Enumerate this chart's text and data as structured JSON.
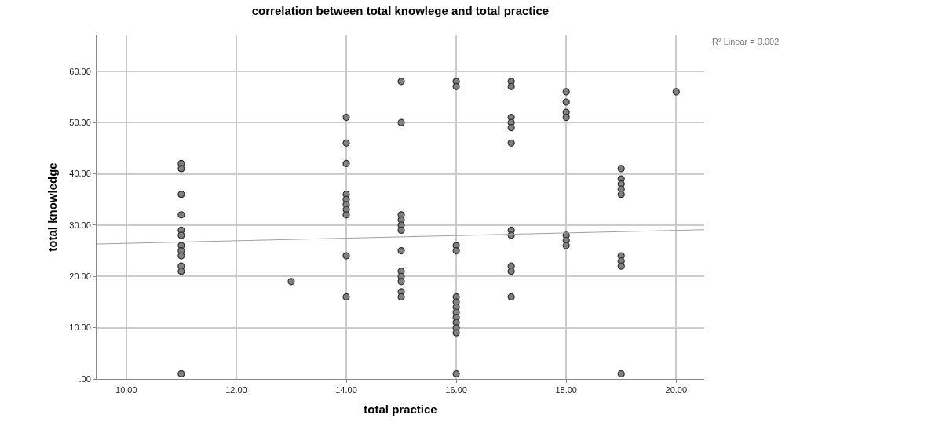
{
  "chart_data": {
    "type": "scatter",
    "title": "correlation between total knowlege and total practice",
    "xlabel": "total practice",
    "ylabel": "total knowledge",
    "annotations": [
      "R² Linear = 0.002"
    ],
    "xlim": [
      9.46,
      20.51
    ],
    "ylim": [
      0,
      67
    ],
    "xticks": [
      {
        "value": 10,
        "label": "10.00"
      },
      {
        "value": 12,
        "label": "12.00"
      },
      {
        "value": 14,
        "label": "14.00"
      },
      {
        "value": 16,
        "label": "16.00"
      },
      {
        "value": 18,
        "label": "18.00"
      },
      {
        "value": 20,
        "label": "20.00"
      }
    ],
    "yticks": [
      {
        "value": 0,
        "label": ".00"
      },
      {
        "value": 10,
        "label": "10.00"
      },
      {
        "value": 20,
        "label": "20.00"
      },
      {
        "value": 30,
        "label": "30.00"
      },
      {
        "value": 40,
        "label": "40.00"
      },
      {
        "value": 50,
        "label": "50.00"
      },
      {
        "value": 60,
        "label": "60.00"
      }
    ],
    "grid": true,
    "marker": "circle",
    "series": [
      {
        "color": "#808080",
        "x": [
          11,
          11,
          11,
          11,
          11,
          11,
          11,
          11,
          11,
          11,
          11,
          11,
          13,
          14,
          14,
          14,
          14,
          14,
          14,
          14,
          14,
          14,
          14,
          15,
          15,
          15,
          15,
          15,
          15,
          15,
          15,
          15,
          15,
          15,
          15,
          16,
          16,
          16,
          16,
          16,
          16,
          16,
          16,
          16,
          16,
          16,
          16,
          16,
          17,
          17,
          17,
          17,
          17,
          17,
          17,
          17,
          17,
          17,
          17,
          18,
          18,
          18,
          18,
          18,
          18,
          18,
          19,
          19,
          19,
          19,
          19,
          19,
          19,
          19,
          19,
          20
        ],
        "values": [
          42,
          41,
          36,
          32,
          29,
          28,
          26,
          25,
          24,
          22,
          21,
          1,
          19,
          51,
          46,
          42,
          36,
          35,
          34,
          33,
          32,
          24,
          16,
          58,
          50,
          32,
          31,
          30,
          29,
          25,
          21,
          20,
          19,
          17,
          16,
          58,
          57,
          26,
          25,
          16,
          15,
          14,
          13,
          12,
          11,
          10,
          9,
          1,
          58,
          57,
          51,
          50,
          49,
          46,
          29,
          28,
          22,
          21,
          16,
          56,
          54,
          52,
          51,
          28,
          27,
          26,
          41,
          39,
          38,
          37,
          36,
          24,
          23,
          22,
          1,
          56
        ]
      },
      {
        "type": "line",
        "color": "#a0a0a0",
        "marker": "none",
        "x": [
          9.46,
          20.51
        ],
        "values": [
          26.3,
          29.1
        ]
      }
    ]
  }
}
